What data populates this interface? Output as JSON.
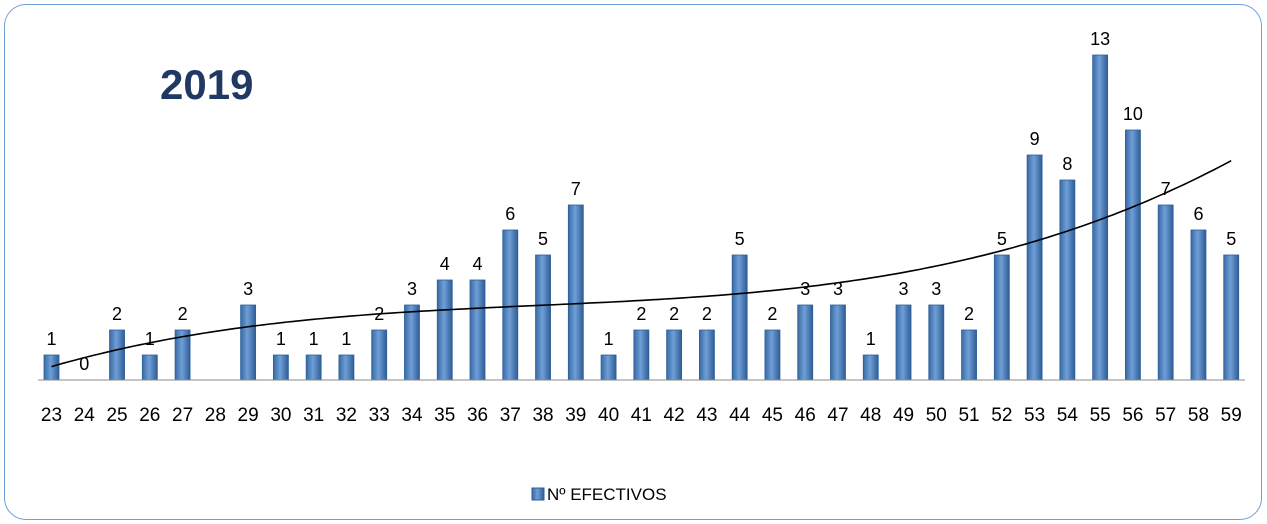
{
  "chart_data": {
    "type": "bar",
    "title": "2019",
    "xlabel": "",
    "ylabel": "",
    "categories": [
      "23",
      "24",
      "25",
      "26",
      "27",
      "28",
      "29",
      "30",
      "31",
      "32",
      "33",
      "34",
      "35",
      "36",
      "37",
      "38",
      "39",
      "40",
      "41",
      "42",
      "43",
      "44",
      "45",
      "46",
      "47",
      "48",
      "49",
      "50",
      "51",
      "52",
      "53",
      "54",
      "55",
      "56",
      "57",
      "58",
      "59"
    ],
    "series": [
      {
        "name": "Nº EFECTIVOS",
        "values": [
          1,
          0,
          2,
          1,
          2,
          null,
          3,
          1,
          1,
          1,
          2,
          3,
          4,
          4,
          6,
          5,
          7,
          1,
          2,
          2,
          2,
          5,
          2,
          3,
          3,
          1,
          3,
          3,
          2,
          5,
          9,
          8,
          13,
          10,
          7,
          6,
          5
        ]
      }
    ],
    "trendline": "polynomial",
    "ylim": [
      0,
      13.5
    ],
    "grid": false,
    "legend_position": "bottom",
    "colors": {
      "bar": "#4f81bd",
      "bar_dark": "#2c5f99",
      "title": "#1f3864",
      "frame": "#6f9fd8"
    }
  }
}
